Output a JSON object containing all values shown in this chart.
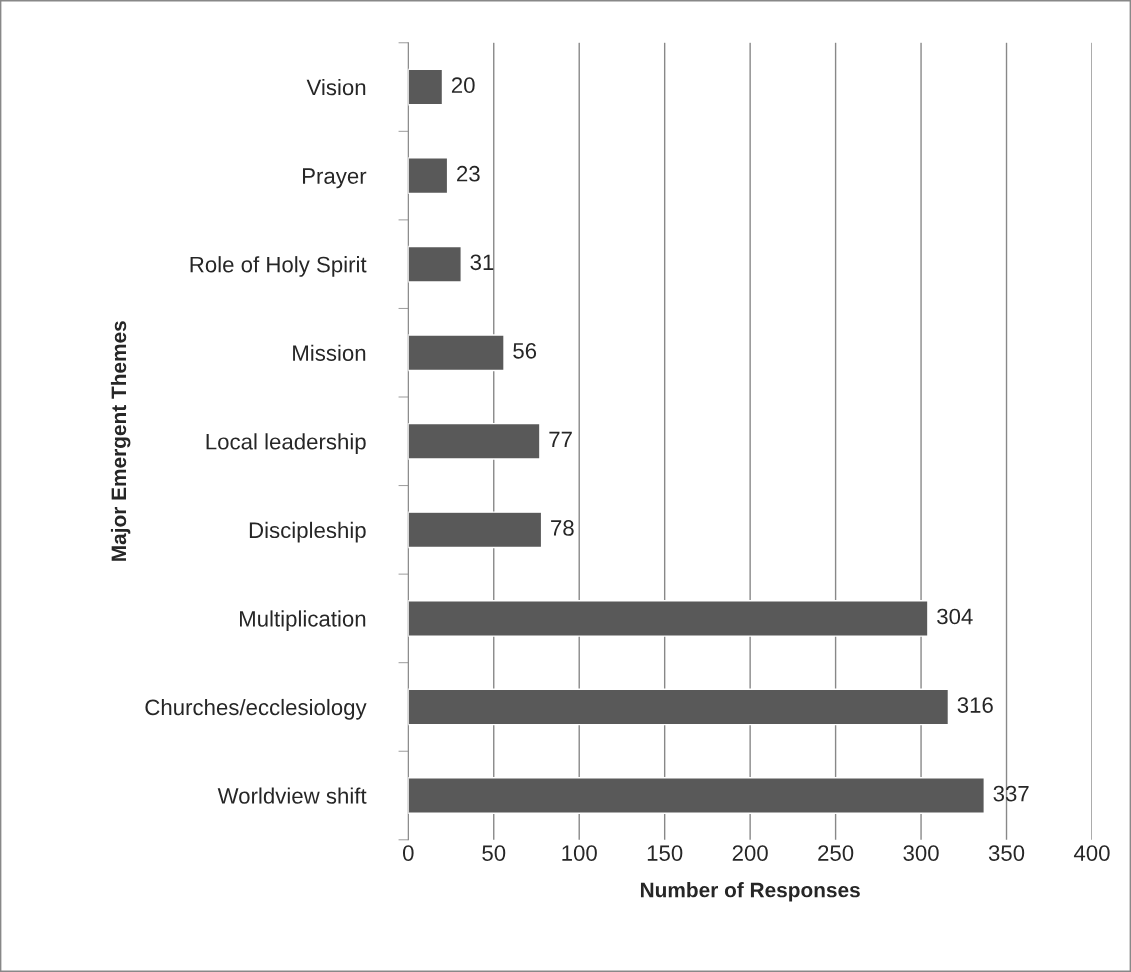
{
  "chart_data": {
    "type": "bar",
    "orientation": "horizontal",
    "categories": [
      "Vision",
      "Prayer",
      "Role of Holy Spirit",
      "Mission",
      "Local leadership",
      "Discipleship",
      "Multiplication",
      "Churches/ecclesiology",
      "Worldview shift"
    ],
    "values": [
      20,
      23,
      31,
      56,
      77,
      78,
      304,
      316,
      337
    ],
    "color": "#595959",
    "xlabel": "Number of Responses",
    "ylabel": "Major Emergent Themes",
    "xlim": [
      0,
      400
    ],
    "xticks": [
      0,
      50,
      100,
      150,
      200,
      250,
      300,
      350,
      400
    ],
    "grid": "x",
    "data_labels": true,
    "legend": false
  }
}
